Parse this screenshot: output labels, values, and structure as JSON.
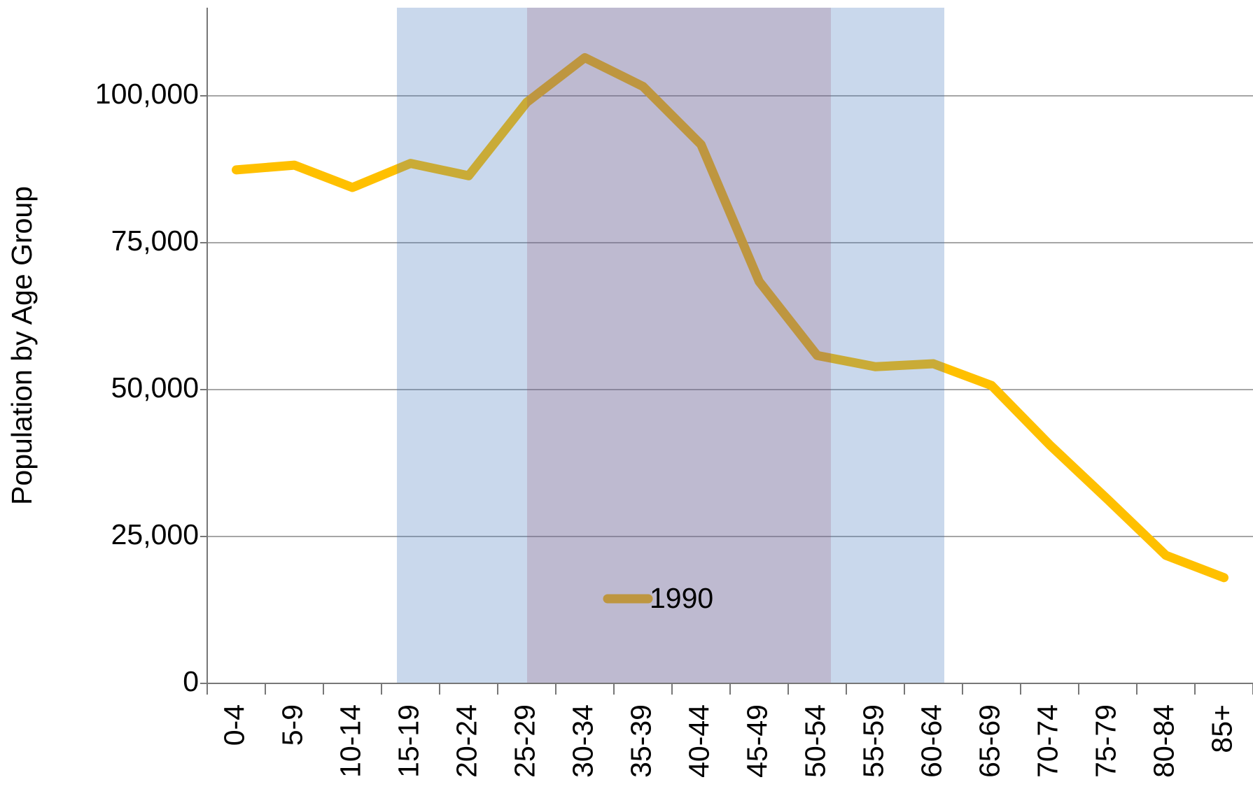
{
  "chart_data": {
    "type": "line",
    "y_label": "Population by Age Group",
    "categories": [
      "0-4",
      "5-9",
      "10-14",
      "15-19",
      "20-24",
      "25-29",
      "30-34",
      "35-39",
      "40-44",
      "45-49",
      "50-54",
      "55-59",
      "60-64",
      "65-69",
      "70-74",
      "75-79",
      "80-84",
      "85+"
    ],
    "series": [
      {
        "name": "1990",
        "color": "#FFC000",
        "values": [
          87400,
          88200,
          84400,
          88500,
          86400,
          98900,
          106500,
          101600,
          91700,
          68400,
          55800,
          53900,
          54400,
          50700,
          40600,
          31300,
          21800,
          18000
        ]
      }
    ],
    "ylim": [
      0,
      115000
    ],
    "yticks": [
      0,
      {
        "value": 25000,
        "label": "25,000"
      },
      {
        "value": 50000,
        "label": "50,000"
      },
      {
        "value": 75000,
        "label": "75,000"
      },
      {
        "value": 100000,
        "label": "100,000"
      }
    ],
    "grid": true,
    "legend": "lower center"
  }
}
